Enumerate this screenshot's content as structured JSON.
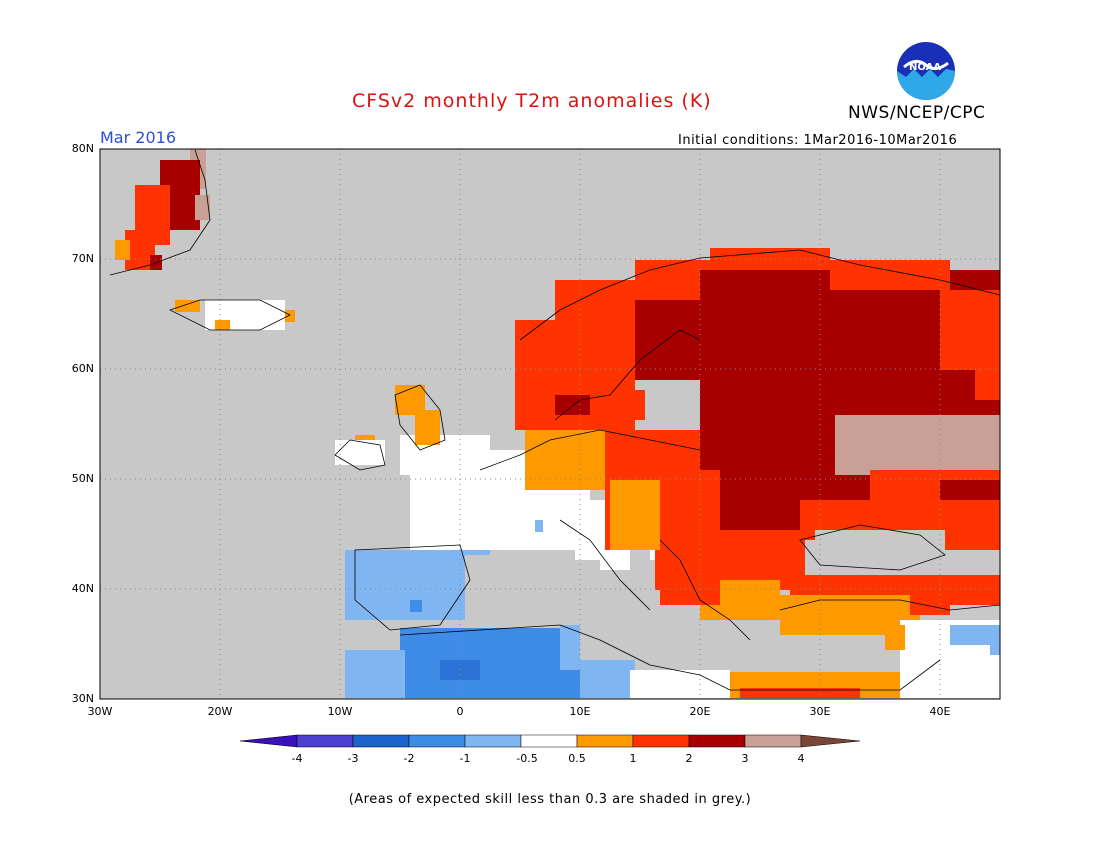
{
  "title": "CFSv2 monthly T2m anomalies (K)",
  "agency": "NWS/NCEP/CPC",
  "logo_text": "NOAA",
  "month": "Mar 2016",
  "initial_conditions": "Initial conditions: 1Mar2016-10Mar2016",
  "lat_labels": [
    "80N",
    "70N",
    "60N",
    "50N",
    "40N",
    "30N"
  ],
  "lon_labels": [
    "30W",
    "20W",
    "10W",
    "0",
    "10E",
    "20E",
    "30E",
    "40E"
  ],
  "colorbar": {
    "ticks": [
      "-4",
      "-3",
      "-2",
      "-1",
      "-0.5",
      "0.5",
      "1",
      "2",
      "3",
      "4"
    ],
    "colors": [
      "#3a10b8",
      "#4b3fd4",
      "#1e62cc",
      "#3f8ce8",
      "#7fb5f0",
      "#ffffff",
      "#ff9900",
      "#ff3300",
      "#a80000",
      "#c9a096",
      "#7a4535"
    ]
  },
  "footnote": "(Areas of expected skill less than 0.3 are shaded in grey.)",
  "colors": {
    "grey": "#c8c8c8",
    "title": "#dd1111",
    "month": "#2a4fe0"
  }
}
